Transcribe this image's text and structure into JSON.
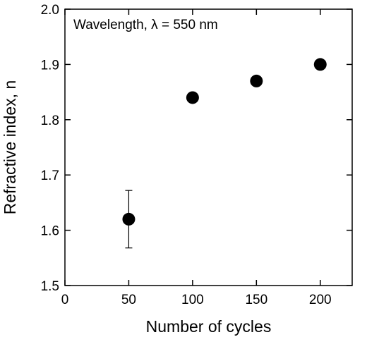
{
  "chart_data": {
    "type": "scatter",
    "xlabel": "Number of cycles",
    "ylabel": "Refractive index, n",
    "xlim": [
      0,
      225
    ],
    "ylim": [
      1.5,
      2.0
    ],
    "xticks": [
      0,
      50,
      100,
      150,
      200
    ],
    "yticks": [
      1.5,
      1.6,
      1.7,
      1.8,
      1.9,
      2.0
    ],
    "xtick_labels": [
      "0",
      "50",
      "100",
      "150",
      "200"
    ],
    "ytick_labels": [
      "1.5",
      "1.6",
      "1.7",
      "1.8",
      "1.9",
      "2.0"
    ],
    "annotation": "Wavelength, λ = 550 nm",
    "grid": false,
    "series": [
      {
        "points": [
          {
            "x": 50,
            "y": 1.62,
            "err_low": 1.568,
            "err_high": 1.672
          },
          {
            "x": 100,
            "y": 1.84
          },
          {
            "x": 150,
            "y": 1.87
          },
          {
            "x": 200,
            "y": 1.9
          }
        ]
      }
    ]
  }
}
